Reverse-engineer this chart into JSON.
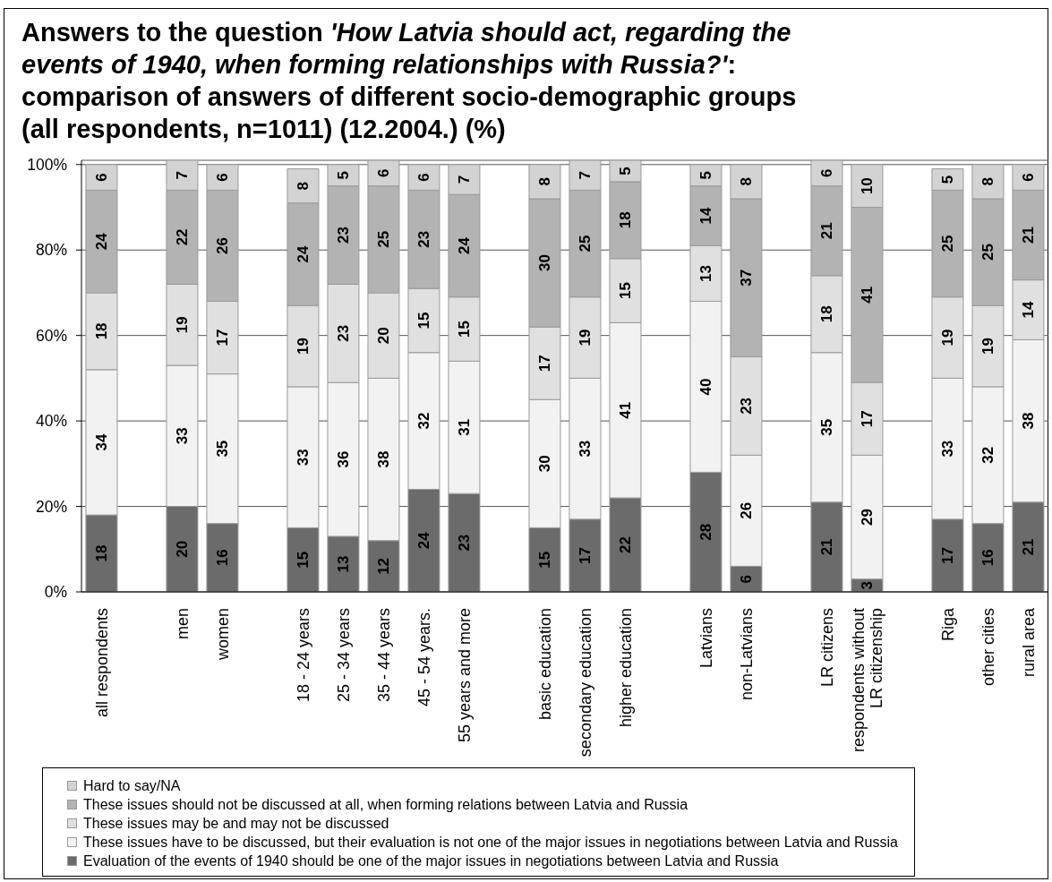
{
  "chart_data": {
    "type": "bar",
    "title": "Answers to the question 'How Latvia should act, regarding the events of 1940, when forming relationships with Russia?': comparison of answers of different socio-demographic groups (all respondents, n=1011) (12.2004.) (%)",
    "categories": [
      "all respondents",
      null,
      "men",
      "women",
      null,
      "18 - 24 years",
      "25 - 34 years",
      "35 - 44 years",
      "45 - 54 years.",
      "55 years and more",
      null,
      "basic education",
      "secondary education",
      "higher education",
      null,
      "Latvians",
      "non-Latvians",
      null,
      "LR citizens",
      "respondents without LR citizenship",
      null,
      "Riga",
      "other cities",
      "rural area"
    ],
    "series": [
      {
        "name": "Evaluation of the events of 1940 should be one of the major issues in negotiations between Latvia and Russia",
        "color": "#6b6b6b",
        "values": [
          18,
          null,
          20,
          16,
          null,
          15,
          13,
          12,
          24,
          23,
          null,
          15,
          17,
          22,
          null,
          28,
          6,
          null,
          21,
          3,
          null,
          17,
          16,
          21
        ]
      },
      {
        "name": "These issues have to be discussed, but their evaluation is not one of the major issues in negotiations between Latvia and Russia",
        "color": "#f2f2f2",
        "values": [
          34,
          null,
          33,
          35,
          null,
          33,
          36,
          38,
          32,
          31,
          null,
          30,
          33,
          41,
          null,
          40,
          26,
          null,
          35,
          29,
          null,
          33,
          32,
          38
        ]
      },
      {
        "name": "These issues may be and may not be discussed",
        "color": "#e0e0e0",
        "values": [
          18,
          null,
          19,
          17,
          null,
          19,
          23,
          20,
          15,
          15,
          null,
          17,
          19,
          15,
          null,
          13,
          23,
          null,
          18,
          17,
          null,
          19,
          19,
          14
        ]
      },
      {
        "name": "These issues should not be discussed at all, when forming relations between Latvia and Russia",
        "color": "#b3b3b3",
        "values": [
          24,
          null,
          22,
          26,
          null,
          24,
          23,
          25,
          23,
          24,
          null,
          30,
          25,
          18,
          null,
          14,
          37,
          null,
          21,
          41,
          null,
          25,
          25,
          21
        ]
      },
      {
        "name": "Hard to say/NA",
        "color": "#d3d3d3",
        "values": [
          6,
          null,
          7,
          6,
          null,
          8,
          5,
          6,
          6,
          7,
          null,
          8,
          7,
          5,
          null,
          5,
          8,
          null,
          6,
          10,
          null,
          5,
          8,
          6
        ]
      }
    ],
    "stacked": true,
    "data_labels": true,
    "ylim": [
      0,
      101
    ],
    "yticks": [
      {
        "value": 0,
        "label": "0%"
      },
      {
        "value": 20,
        "label": "20%"
      },
      {
        "value": 40,
        "label": "40%"
      },
      {
        "value": 60,
        "label": "60%"
      },
      {
        "value": 80,
        "label": "80%"
      },
      {
        "value": 100,
        "label": "100%"
      }
    ],
    "grid": "y",
    "legend": "bottom"
  }
}
